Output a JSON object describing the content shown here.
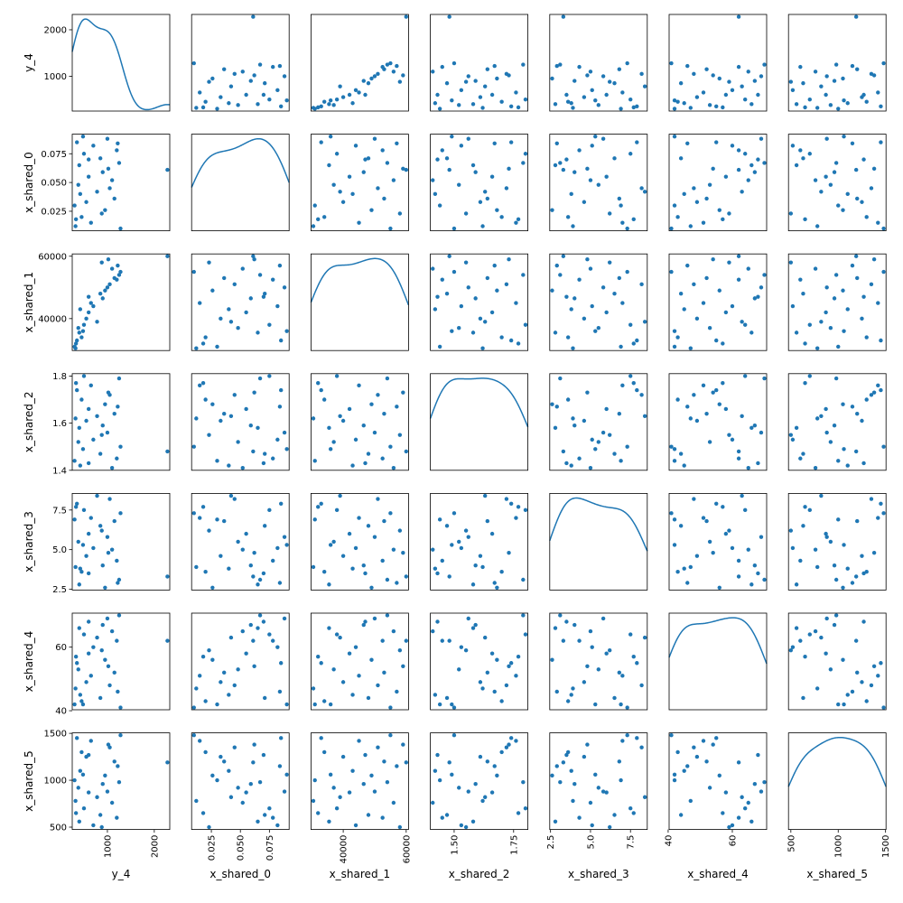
{
  "chart_data": {
    "type": "scatter_matrix",
    "color": "#1f77b4",
    "variables": [
      {
        "name": "y_4",
        "lim": [
          250,
          2330
        ],
        "yticks": [
          1000,
          2000
        ],
        "xticks": [
          1000,
          2000
        ],
        "values": [
          2280,
          320,
          350,
          300,
          400,
          450,
          380,
          500,
          550,
          600,
          420,
          700,
          650,
          900,
          850,
          950,
          1000,
          1050,
          1200,
          1150,
          1250,
          1280,
          1100,
          1220,
          880,
          1020,
          780,
          480,
          330,
          600
        ]
      },
      {
        "name": "x_shared_0",
        "lim": [
          0.008,
          0.092
        ],
        "yticks": [
          0.025,
          {
            "value": 0.05,
            "label": "0.050"
          },
          0.075
        ],
        "xticks": [
          0.025,
          {
            "value": 0.05,
            "label": "0.050"
          },
          0.075
        ],
        "values": [
          0.061,
          0.012,
          0.085,
          0.03,
          0.065,
          0.02,
          0.048,
          0.075,
          0.033,
          0.055,
          0.04,
          0.082,
          0.015,
          0.059,
          0.071,
          0.026,
          0.088,
          0.045,
          0.078,
          0.036,
          0.067,
          0.01,
          0.052,
          0.084,
          0.023,
          0.062,
          0.042,
          0.09,
          0.018,
          0.07
        ]
      },
      {
        "name": "x_shared_1",
        "lim": [
          29760,
          60740
        ],
        "yticks": [
          40000,
          60000
        ],
        "xticks": [
          40000,
          60000
        ],
        "values": [
          60000,
          30500,
          33000,
          31000,
          35500,
          34000,
          37000,
          38000,
          40000,
          42000,
          43000,
          44000,
          45000,
          46500,
          48000,
          49000,
          50000,
          51000,
          52500,
          53000,
          54000,
          55000,
          56000,
          57000,
          58000,
          59000,
          39000,
          36000,
          32000,
          47000
        ]
      },
      {
        "name": "x_shared_2",
        "lim": [
          1.4,
          1.81
        ],
        "yticks": [
          1.4,
          1.6,
          1.8
        ],
        "xticks": [
          {
            "value": 1.5,
            "label": "1.50"
          },
          1.75
        ],
        "values": [
          1.48,
          1.62,
          1.74,
          1.44,
          1.58,
          1.7,
          1.52,
          1.8,
          1.61,
          1.66,
          1.42,
          1.53,
          1.76,
          1.59,
          1.47,
          1.68,
          1.56,
          1.72,
          1.45,
          1.64,
          1.79,
          1.5,
          1.41,
          1.67,
          1.55,
          1.73,
          1.63,
          1.49,
          1.77,
          1.43
        ]
      },
      {
        "name": "x_shared_3",
        "lim": [
          2.45,
          8.55
        ],
        "yticks": [
          2.5,
          {
            "value": 5,
            "label": "5.0"
          },
          7.5
        ],
        "xticks": [
          2.5,
          {
            "value": 5,
            "label": "5.0"
          },
          7.5
        ],
        "values": [
          3.3,
          3.9,
          7.9,
          6.9,
          2.8,
          3.6,
          5.5,
          7.5,
          4.6,
          6.0,
          3.8,
          5.1,
          7.0,
          4.0,
          6.5,
          2.6,
          5.8,
          8.2,
          4.3,
          6.8,
          3.1,
          7.3,
          5.0,
          2.9,
          6.2,
          4.8,
          8.4,
          5.3,
          7.7,
          3.5
        ]
      },
      {
        "name": "x_shared_4",
        "lim": [
          40.3,
          70.7
        ],
        "yticks": [
          40,
          60
        ],
        "xticks": [
          40,
          60
        ],
        "values": [
          62,
          47,
          55,
          42,
          66,
          43,
          53,
          64,
          49,
          58,
          45,
          60,
          51,
          67,
          44,
          56,
          69,
          48,
          62,
          52,
          70,
          41,
          65,
          46,
          59,
          54,
          63,
          42,
          57,
          68
        ]
      },
      {
        "name": "x_shared_5",
        "lim": [
          475,
          1505
        ],
        "yticks": [
          500,
          1000,
          1500
        ],
        "xticks": [
          500,
          1000,
          1500
        ],
        "values": [
          1190,
          780,
          1450,
          1000,
          560,
          1300,
          920,
          700,
          1250,
          870,
          1100,
          520,
          1420,
          960,
          630,
          1050,
          880,
          1350,
          600,
          1200,
          980,
          1480,
          760,
          1150,
          500,
          1380,
          820,
          1060,
          650,
          1270
        ]
      }
    ]
  }
}
